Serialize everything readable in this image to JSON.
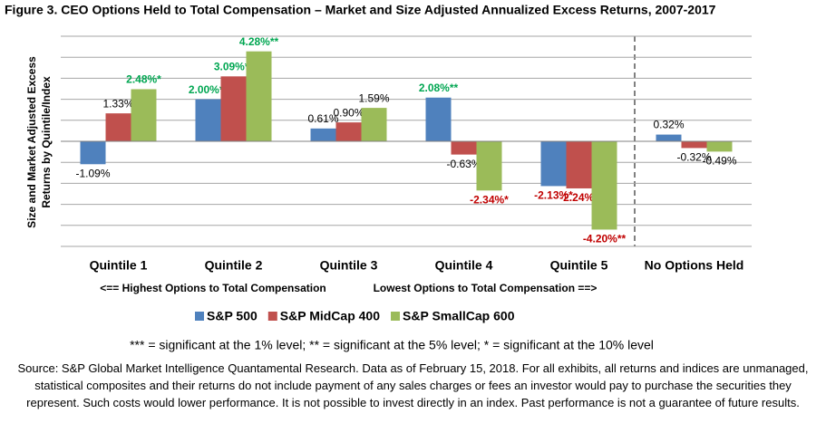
{
  "chart_data": {
    "type": "bar",
    "title": "Figure 3. CEO Options Held to Total Compensation – Market and Size Adjusted Annualized Excess Returns, 2007-2017",
    "y_label": [
      "Size and Market Adjusted  Excess",
      "Returns by Quintile/Index"
    ],
    "categories": [
      "Quintile 1",
      "Quintile 2",
      "Quintile 3",
      "Quintile 4",
      "Quintile 5",
      "No Options Held"
    ],
    "series": [
      {
        "name": "S&P 500",
        "color": "#4f81bd",
        "values": [
          -1.09,
          2.0,
          0.61,
          2.08,
          -2.13,
          0.32
        ],
        "value_labels": [
          "-1.09%",
          "2.00%**",
          "0.61%",
          "2.08%**",
          "-2.13%*",
          "0.32%"
        ]
      },
      {
        "name": "S&P MidCap 400",
        "color": "#c0504d",
        "values": [
          1.33,
          3.09,
          0.9,
          -0.63,
          -2.24,
          -0.32
        ],
        "value_labels": [
          "1.33%",
          "3.09%**",
          "0.90%",
          "-0.63%",
          "-2.24%*",
          "-0.32%"
        ]
      },
      {
        "name": "S&P SmallCap 600",
        "color": "#9bbb59",
        "values": [
          2.48,
          4.28,
          1.59,
          -2.34,
          -4.2,
          -0.49
        ],
        "value_labels": [
          "2.48%*",
          "4.28%**",
          "1.59%",
          "-2.34%*",
          "-4.20%**",
          "-0.49%"
        ]
      }
    ],
    "ylim": [
      -5,
      5
    ],
    "yticks": [
      -5,
      -4,
      -3,
      -2,
      -1,
      0,
      1,
      2,
      3,
      4,
      5
    ],
    "grid": true,
    "annotations": [
      "<== Highest Options to Total Compensation",
      "Lowest Options to Total Compensation ==>"
    ],
    "footnote": "*** = significant at the 1% level; ** = significant at the 5% level; * = significant at the 10% level",
    "source": "Source: S&P Global Market Intelligence Quantamental Research. Data as of February 15, 2018. For all exhibits, all returns and indices are unmanaged, statistical composites and their returns do not include payment of any sales charges or fees an investor would pay to purchase the securities they represent. Such costs would lower performance. It is not possible to invest directly in an index. Past performance is not a guarantee of future results."
  }
}
